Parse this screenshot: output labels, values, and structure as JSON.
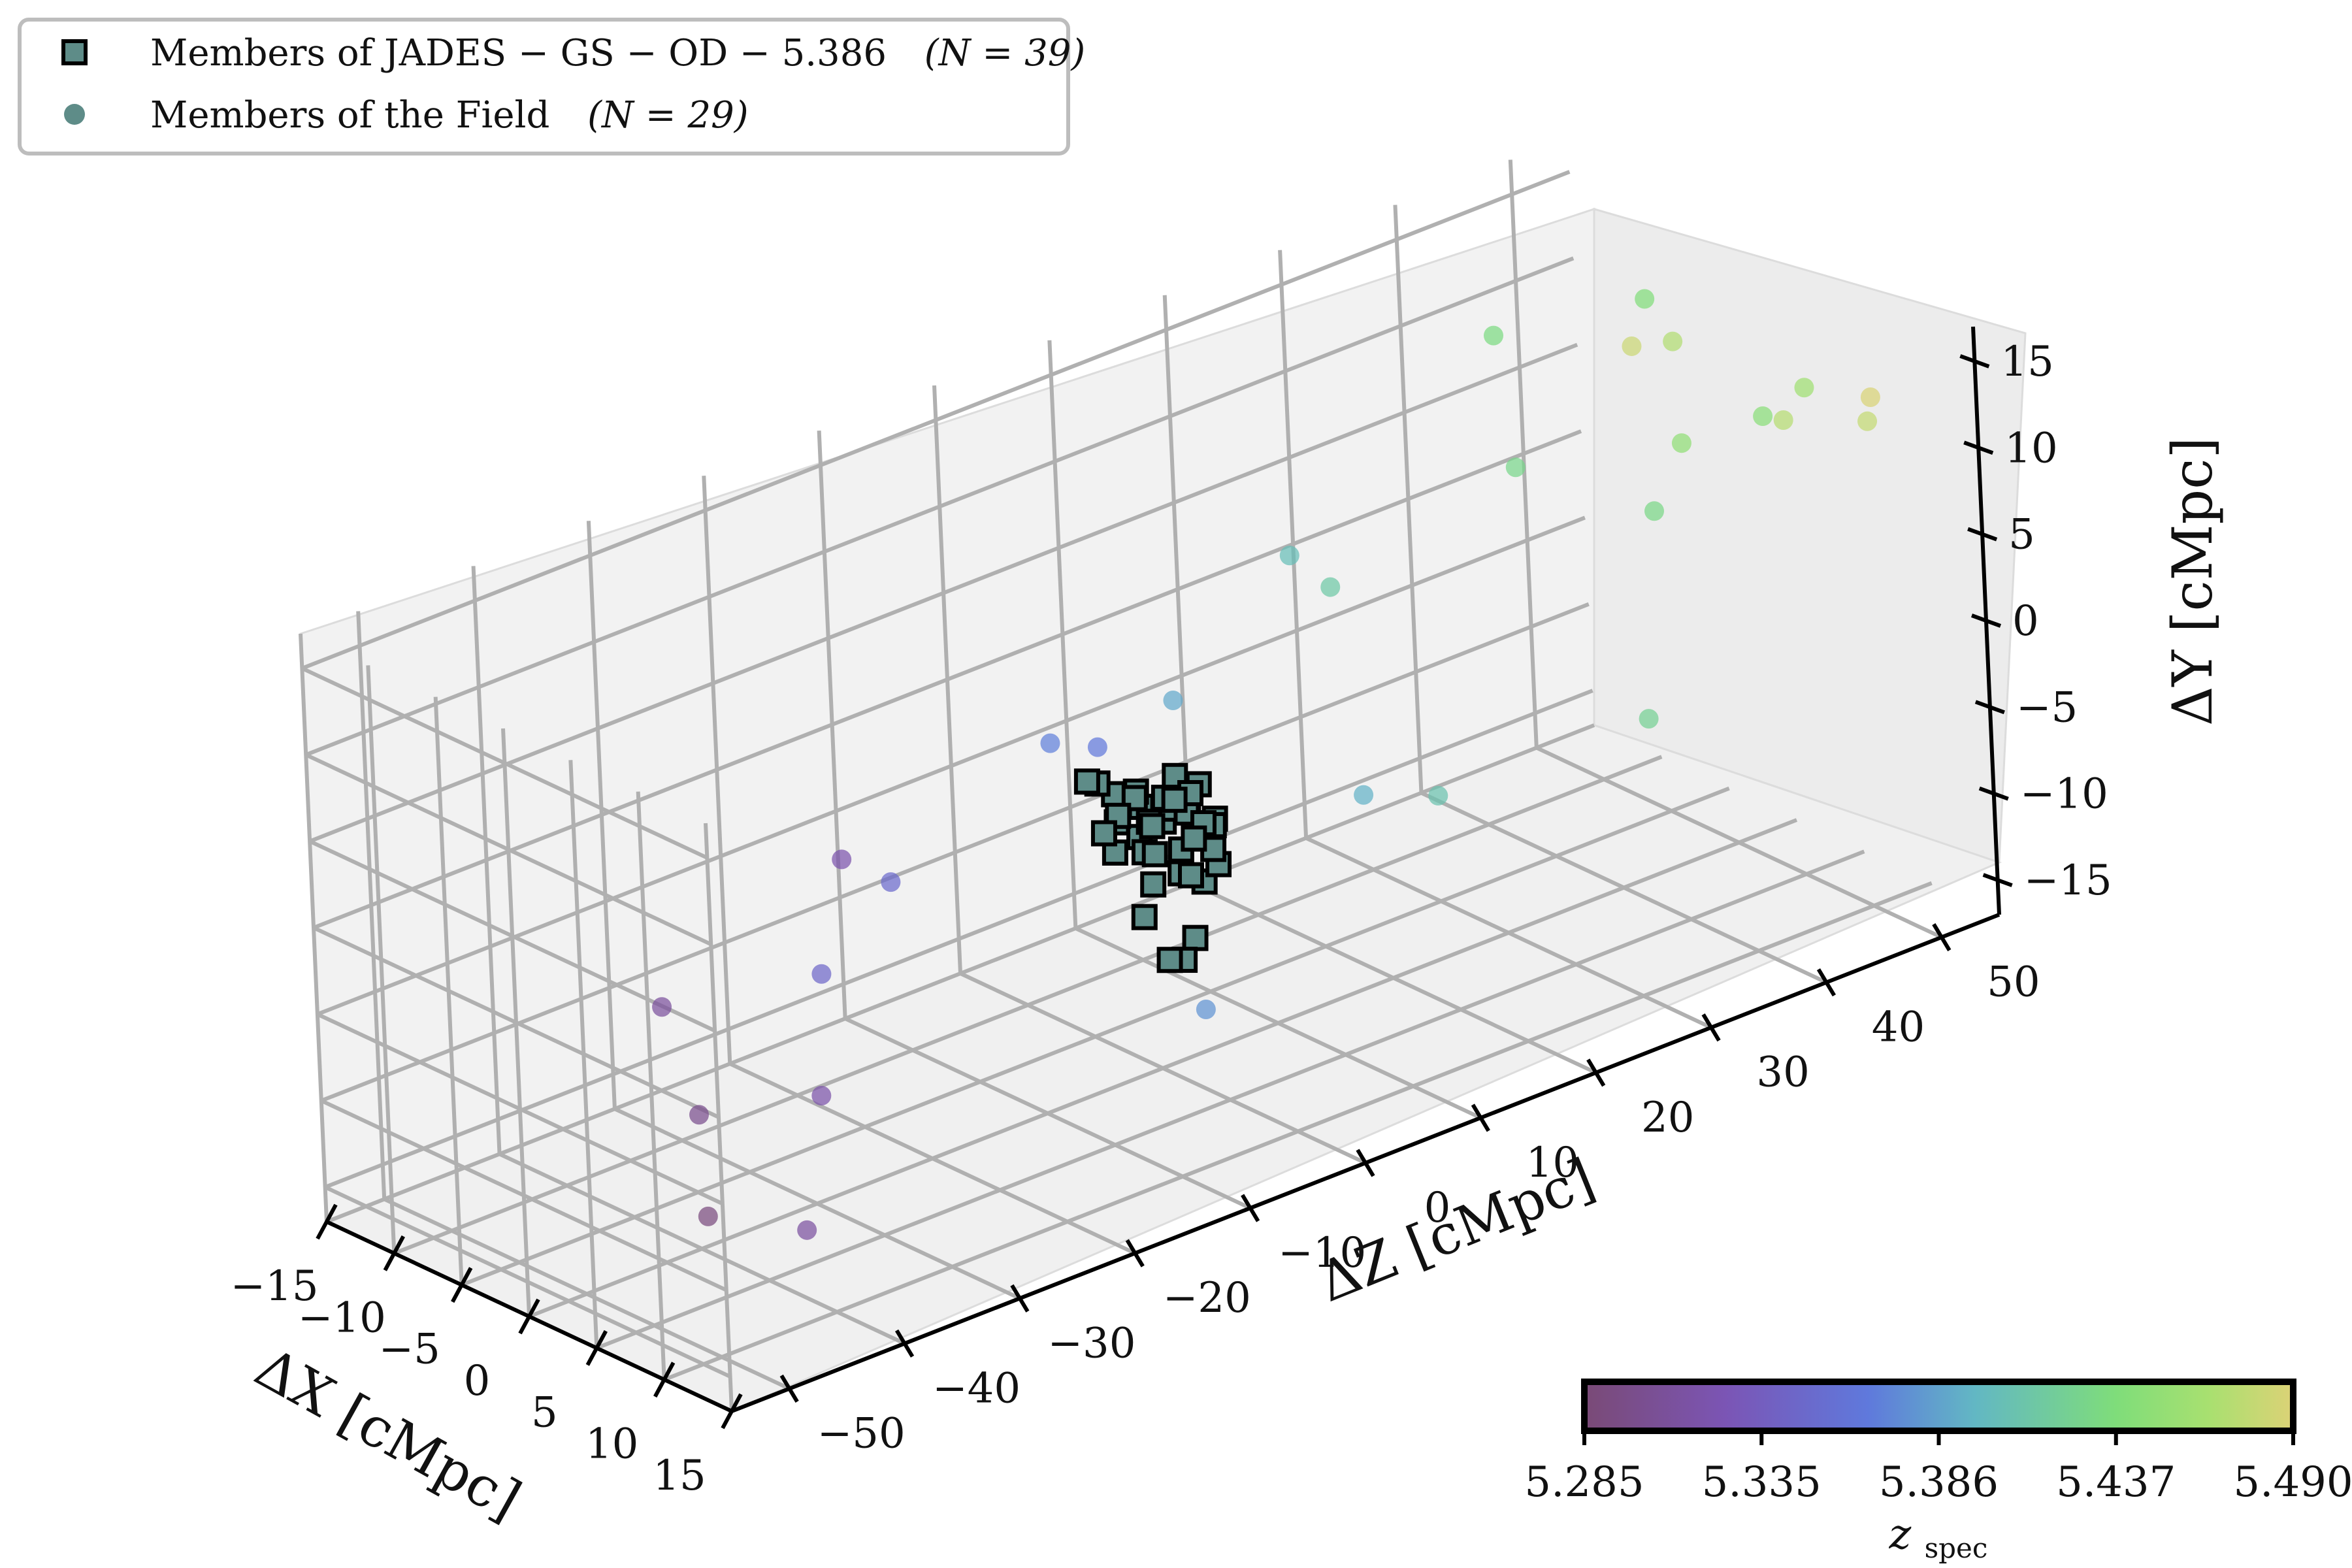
{
  "chart_data": {
    "type": "scatter",
    "title": "",
    "axes": {
      "x": {
        "label": "ΔX [cMpc]",
        "range": [
          -15,
          15
        ],
        "ticks": [
          -15,
          -10,
          -5,
          0,
          5,
          10,
          15
        ],
        "tick_labels": [
          "−15",
          "−10",
          "−5",
          "0",
          "5",
          "10",
          "15"
        ]
      },
      "z": {
        "label": "ΔZ [cMpc]",
        "range": [
          -55,
          55
        ],
        "ticks": [
          -50,
          -40,
          -30,
          -20,
          -10,
          0,
          10,
          20,
          30,
          40,
          50
        ],
        "tick_labels": [
          "−50",
          "−40",
          "−30",
          "−20",
          "−10",
          "0",
          "10",
          "20",
          "30",
          "40",
          "50"
        ]
      },
      "y": {
        "label": "ΔY [cMpc]",
        "range": [
          -17,
          17
        ],
        "ticks": [
          -15,
          -10,
          -5,
          0,
          5,
          10,
          15
        ],
        "tick_labels": [
          "−15",
          "−10",
          "−5",
          "0",
          "5",
          "10",
          "15"
        ]
      }
    },
    "grid": true,
    "legend": {
      "placement": "top-left",
      "entries": [
        {
          "marker": "square",
          "label": "Members of JADES − GS − OD − 5.386",
          "count": "(N = 39)"
        },
        {
          "marker": "circle",
          "label": "Members of the Field",
          "count": "(N = 29)"
        }
      ]
    },
    "colorbar": {
      "label": "z",
      "label_sub": "spec",
      "range": [
        5.285,
        5.49
      ],
      "tick_labels": [
        "5.285",
        "5.335",
        "5.386",
        "5.437",
        "5.490"
      ],
      "colormap": "viridis",
      "placement": "bottom-right"
    },
    "series": [
      {
        "name": "Members of JADES − GS − OD − 5.386",
        "marker": "square",
        "color": "#5e8c88",
        "edge_color": "#000000",
        "points": [
          [
            1,
            2,
            -2
          ],
          [
            0,
            1,
            -3
          ],
          [
            2,
            -1,
            -1
          ],
          [
            -1,
            0,
            -4
          ],
          [
            3,
            2,
            -2
          ],
          [
            1,
            -2,
            -1
          ],
          [
            0,
            3,
            -3
          ],
          [
            2,
            0,
            -5
          ],
          [
            -2,
            1,
            -2
          ],
          [
            1,
            1,
            0
          ],
          [
            3,
            -1,
            -3
          ],
          [
            -1,
            -2,
            -1
          ],
          [
            2,
            2,
            -6
          ],
          [
            0,
            -3,
            -2
          ],
          [
            1,
            0,
            -1
          ],
          [
            -3,
            2,
            -3
          ],
          [
            4,
            1,
            -4
          ],
          [
            1,
            3,
            -1
          ],
          [
            -2,
            -1,
            -5
          ],
          [
            3,
            0,
            0
          ],
          [
            0,
            2,
            -2
          ],
          [
            2,
            -3,
            -3
          ],
          [
            -1,
            1,
            -7
          ],
          [
            1,
            -1,
            -4
          ],
          [
            2,
            3,
            -3
          ],
          [
            -4,
            0,
            -2
          ],
          [
            0,
            -1,
            -8
          ],
          [
            3,
            1,
            -2
          ],
          [
            1,
            -4,
            -1
          ],
          [
            -2,
            2,
            -4
          ],
          [
            2,
            1,
            -9
          ],
          [
            0,
            0,
            -3
          ],
          [
            1,
            4,
            -5
          ],
          [
            -1,
            -3,
            -3
          ],
          [
            4,
            -1,
            -2
          ],
          [
            2,
            0,
            -10
          ],
          [
            -3,
            -2,
            -1
          ],
          [
            1,
            2,
            -6
          ],
          [
            0,
            1,
            -11
          ]
        ]
      },
      {
        "name": "Members of the Field",
        "marker": "circle",
        "points": [
          [
            5,
            -45,
            -12,
            5.29
          ],
          [
            2,
            -42,
            -8,
            5.3
          ],
          [
            -4,
            -38,
            -5,
            5.31
          ],
          [
            8,
            -40,
            -13,
            5.312
          ],
          [
            6,
            -36,
            -7,
            5.318
          ],
          [
            3,
            -30,
            4,
            5.32
          ],
          [
            -6,
            -22,
            -8,
            5.345
          ],
          [
            -4,
            -18,
            -3,
            5.35
          ],
          [
            5,
            -10,
            6,
            5.365
          ],
          [
            -3,
            -5,
            2,
            5.37
          ],
          [
            7,
            -4,
            -10,
            5.38
          ],
          [
            2,
            0,
            5,
            5.39
          ],
          [
            9,
            8,
            0,
            5.395
          ],
          [
            -2,
            15,
            8,
            5.405
          ],
          [
            4,
            20,
            -5,
            5.41
          ],
          [
            -7,
            24,
            2,
            5.415
          ],
          [
            6,
            36,
            -4,
            5.425
          ],
          [
            -5,
            38,
            6,
            5.43
          ],
          [
            8,
            35,
            9,
            5.432
          ],
          [
            -8,
            40,
            12,
            5.435
          ],
          [
            0,
            44,
            16,
            5.44
          ],
          [
            5,
            48,
            10,
            5.445
          ],
          [
            -3,
            50,
            5,
            5.45
          ],
          [
            10,
            46,
            14,
            5.46
          ],
          [
            -6,
            53,
            9,
            5.47
          ],
          [
            3,
            52,
            8,
            5.472
          ],
          [
            12,
            49,
            12,
            5.478
          ],
          [
            -10,
            54,
            7,
            5.482
          ],
          [
            7,
            55,
            10,
            5.488
          ]
        ]
      }
    ]
  }
}
